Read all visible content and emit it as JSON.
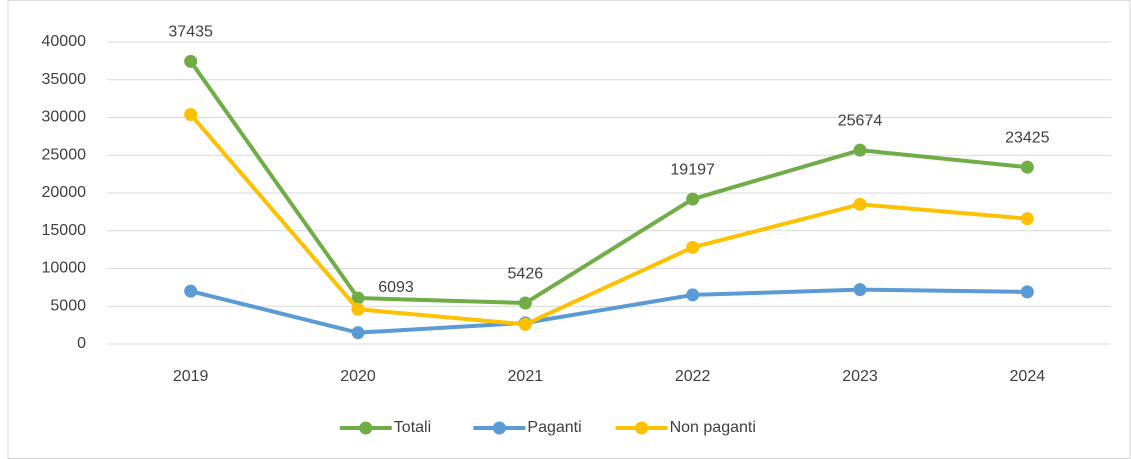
{
  "chart_data": {
    "type": "line",
    "categories": [
      "2019",
      "2020",
      "2021",
      "2022",
      "2023",
      "2024"
    ],
    "series": [
      {
        "name": "Totali",
        "color": "#70ad47",
        "values": [
          37435,
          6093,
          5426,
          19197,
          25674,
          23425
        ],
        "data_labels": true
      },
      {
        "name": "Paganti",
        "color": "#5b9bd5",
        "values": [
          7000,
          1500,
          2800,
          6500,
          7200,
          6900
        ]
      },
      {
        "name": "Non paganti",
        "color": "#ffc000",
        "values": [
          30400,
          4600,
          2600,
          12800,
          18500,
          16600
        ]
      }
    ],
    "ylim": [
      0,
      40000
    ],
    "yticks": [
      0,
      5000,
      10000,
      15000,
      20000,
      25000,
      30000,
      35000,
      40000
    ],
    "grid": true,
    "legend": "bottom"
  }
}
